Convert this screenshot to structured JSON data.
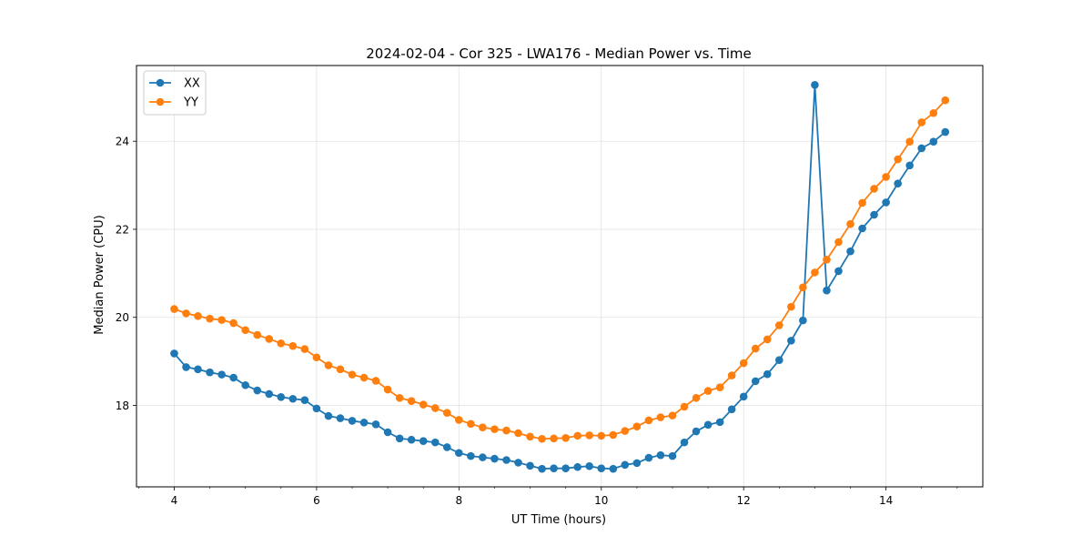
{
  "chart_data": {
    "type": "line",
    "title": "2024-02-04 - Cor 325 - LWA176 - Median Power vs. Time",
    "xlabel": "UT Time (hours)",
    "ylabel": "Median Power (CPU)",
    "xlim": [
      3.47,
      15.36
    ],
    "ylim": [
      16.15,
      25.72
    ],
    "x_ticks": [
      4,
      6,
      8,
      10,
      12,
      14
    ],
    "x_tick_labels": [
      "4",
      "6",
      "8",
      "10",
      "12",
      "14"
    ],
    "y_ticks": [
      18,
      20,
      22,
      24
    ],
    "y_tick_labels": [
      "18",
      "20",
      "22",
      "24"
    ],
    "grid": true,
    "legend_position": "top-left",
    "x": [
      4.0,
      4.167,
      4.333,
      4.5,
      4.667,
      4.833,
      5.0,
      5.167,
      5.333,
      5.5,
      5.667,
      5.833,
      6.0,
      6.167,
      6.333,
      6.5,
      6.667,
      6.833,
      7.0,
      7.167,
      7.333,
      7.5,
      7.667,
      7.833,
      8.0,
      8.167,
      8.333,
      8.5,
      8.667,
      8.833,
      9.0,
      9.167,
      9.333,
      9.5,
      9.667,
      9.833,
      10.0,
      10.167,
      10.333,
      10.5,
      10.667,
      10.833,
      11.0,
      11.167,
      11.333,
      11.5,
      11.667,
      11.833,
      12.0,
      12.167,
      12.333,
      12.5,
      12.667,
      12.833,
      13.0,
      13.167,
      13.333,
      13.5,
      13.667,
      13.833,
      14.0,
      14.167,
      14.333,
      14.5,
      14.667,
      14.833
    ],
    "series": [
      {
        "name": "XX",
        "color": "#1f77b4",
        "values": [
          19.18,
          18.87,
          18.82,
          18.75,
          18.7,
          18.63,
          18.46,
          18.34,
          18.26,
          18.19,
          18.15,
          18.12,
          17.93,
          17.76,
          17.71,
          17.65,
          17.61,
          17.57,
          17.39,
          17.25,
          17.22,
          17.19,
          17.16,
          17.05,
          16.92,
          16.85,
          16.82,
          16.79,
          16.76,
          16.7,
          16.63,
          16.56,
          16.57,
          16.57,
          16.6,
          16.62,
          16.57,
          16.56,
          16.65,
          16.69,
          16.81,
          16.87,
          16.85,
          17.16,
          17.41,
          17.56,
          17.62,
          17.91,
          18.2,
          18.55,
          18.71,
          19.03,
          19.47,
          19.93,
          25.28,
          20.61,
          21.05,
          21.5,
          22.02,
          22.33,
          22.61,
          23.04,
          23.45,
          23.84,
          23.99,
          24.21
        ]
      },
      {
        "name": "YY",
        "color": "#ff7f0e",
        "values": [
          20.19,
          20.09,
          20.03,
          19.97,
          19.94,
          19.87,
          19.71,
          19.6,
          19.51,
          19.41,
          19.35,
          19.28,
          19.09,
          18.91,
          18.82,
          18.7,
          18.63,
          18.56,
          18.36,
          18.17,
          18.1,
          18.02,
          17.94,
          17.83,
          17.67,
          17.58,
          17.5,
          17.46,
          17.43,
          17.37,
          17.29,
          17.24,
          17.25,
          17.26,
          17.31,
          17.32,
          17.31,
          17.33,
          17.42,
          17.52,
          17.66,
          17.73,
          17.77,
          17.97,
          18.17,
          18.33,
          18.41,
          18.68,
          18.96,
          19.29,
          19.5,
          19.82,
          20.24,
          20.68,
          21.02,
          21.31,
          21.71,
          22.12,
          22.6,
          22.92,
          23.19,
          23.59,
          23.99,
          24.43,
          24.64,
          24.93
        ]
      }
    ]
  }
}
